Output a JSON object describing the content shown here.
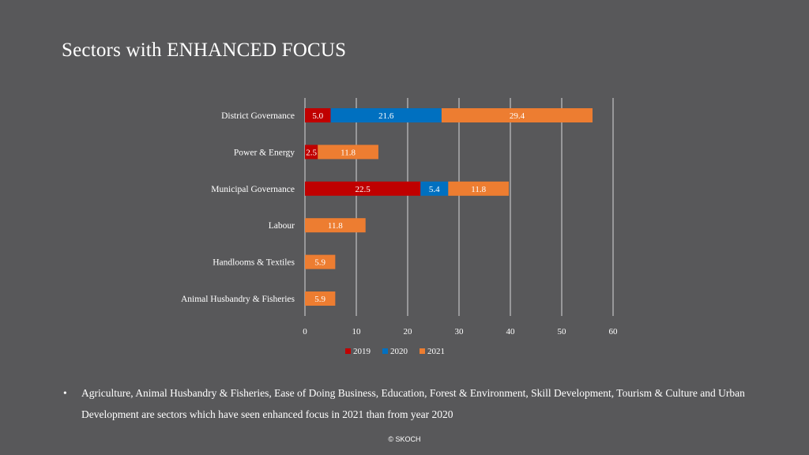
{
  "slide": {
    "title": "Sectors with ENHANCED FOCUS",
    "bullet_marker": "•",
    "bullet_text": "Agriculture, Animal Husbandry & Fisheries, Ease of Doing Business, Education, Forest & Environment, Skill Development, Tourism & Culture and Urban Development are sectors which have seen enhanced focus in 2021 than from year 2020",
    "footer": "© SKOCH"
  },
  "chart_data": {
    "type": "bar",
    "orientation": "horizontal",
    "stacked": true,
    "categories": [
      "District Governance",
      "Power & Energy",
      "Municipal Governance",
      "Labour",
      "Handlooms & Textiles",
      "Animal Husbandry & Fisheries"
    ],
    "series": [
      {
        "name": "2019",
        "color": "#c00000",
        "values": [
          5.0,
          2.5,
          22.5,
          null,
          null,
          null
        ],
        "labels": [
          "5.0",
          "2.5",
          "22.5",
          "",
          "",
          ""
        ]
      },
      {
        "name": "2020",
        "color": "#0070c0",
        "values": [
          21.6,
          null,
          5.4,
          null,
          null,
          null
        ],
        "labels": [
          "21.6",
          "",
          "5.4",
          "",
          "",
          ""
        ]
      },
      {
        "name": "2021",
        "color": "#ed7d31",
        "values": [
          29.4,
          11.8,
          11.8,
          11.8,
          5.9,
          5.9
        ],
        "labels": [
          "29.4",
          "11.8",
          "11.8",
          "11.8",
          "5.9",
          "5.9"
        ]
      }
    ],
    "xlim": [
      0,
      60
    ],
    "xticks": [
      0,
      10,
      20,
      30,
      40,
      50,
      60
    ],
    "grid": true,
    "legend_position": "bottom"
  }
}
